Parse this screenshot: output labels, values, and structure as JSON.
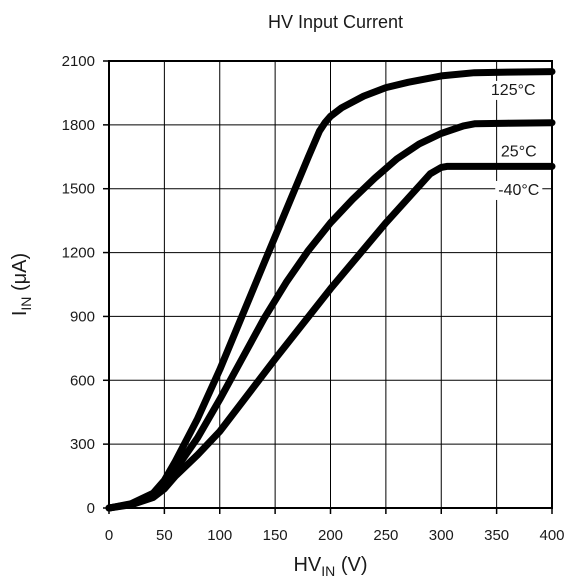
{
  "chart_data": {
    "type": "line",
    "title": "HV Input Current",
    "xlabel": {
      "main": "HV",
      "sub": "IN",
      "unit": " (V)"
    },
    "ylabel": {
      "main": "I",
      "sub": "IN",
      "unit": " (μA)"
    },
    "xlim": [
      0,
      400
    ],
    "ylim": [
      0,
      2100
    ],
    "x_ticks": [
      0,
      50,
      100,
      150,
      200,
      250,
      300,
      350,
      400
    ],
    "x_tick_labels": [
      "0",
      "50",
      "100",
      "150",
      "200",
      "250",
      "300",
      "350",
      "400"
    ],
    "y_ticks": [
      0,
      300,
      600,
      900,
      1200,
      1500,
      1800,
      2100
    ],
    "y_tick_labels": [
      "0",
      "300",
      "600",
      "900",
      "1200",
      "1500",
      "1800",
      "2100"
    ],
    "grid": true,
    "series": [
      {
        "name": "125°C",
        "label_at": [
          365,
          1950
        ],
        "x": [
          0,
          20,
          40,
          50,
          60,
          80,
          100,
          120,
          140,
          160,
          180,
          190,
          195,
          200,
          210,
          230,
          250,
          270,
          300,
          330,
          360,
          400
        ],
        "y": [
          0,
          20,
          70,
          130,
          220,
          420,
          650,
          900,
          1150,
          1400,
          1650,
          1770,
          1810,
          1840,
          1880,
          1935,
          1975,
          2000,
          2030,
          2045,
          2048,
          2050
        ]
      },
      {
        "name": "25°C",
        "label_at": [
          370,
          1660
        ],
        "x": [
          0,
          20,
          40,
          50,
          60,
          80,
          100,
          120,
          140,
          160,
          180,
          200,
          220,
          240,
          260,
          280,
          300,
          320,
          330,
          360,
          400
        ],
        "y": [
          0,
          18,
          60,
          110,
          180,
          330,
          510,
          700,
          890,
          1060,
          1210,
          1340,
          1450,
          1550,
          1640,
          1710,
          1760,
          1795,
          1805,
          1808,
          1810
        ]
      },
      {
        "name": "-40°C",
        "label_at": [
          370,
          1480
        ],
        "x": [
          0,
          20,
          40,
          50,
          60,
          80,
          100,
          150,
          200,
          250,
          290,
          300,
          305,
          320,
          360,
          400
        ],
        "y": [
          0,
          15,
          50,
          90,
          150,
          250,
          360,
          700,
          1030,
          1340,
          1570,
          1600,
          1605,
          1605,
          1605,
          1605
        ]
      }
    ]
  }
}
